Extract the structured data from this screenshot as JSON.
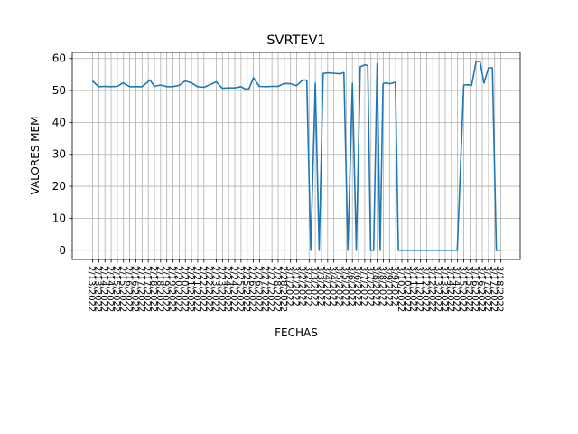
{
  "chart_data": {
    "type": "line",
    "title": "SVRTEV1",
    "xlabel": "FECHAS",
    "ylabel": "VALORES MEM",
    "ylim": [
      -2.9,
      61.9
    ],
    "yticks": [
      0,
      10,
      20,
      30,
      40,
      50,
      60
    ],
    "grid": true,
    "legend": "none",
    "line_color": "#1f77b4",
    "xticks": [
      "2/13/2022",
      "2/14/2022",
      "2/15/2022",
      "2/16/2022",
      "2/17/2022",
      "2/18/2022",
      "2/19/2022",
      "2/20/2022",
      "2/21/2022",
      "2/22/2022",
      "2/23/2022",
      "2/24/2022",
      "2/25/2022",
      "2/26/2022",
      "2/27/2022",
      "2/28/2022",
      "3/1/2022",
      "3/2/2022",
      "3/3/2022",
      "3/4/2022",
      "3/5/2022",
      "3/6/2022",
      "3/7/2022",
      "3/8/2022",
      "3/9/2022",
      "3/10/2022",
      "3/11/2022",
      "3/12/2022",
      "3/13/2022",
      "3/14/2022",
      "3/15/2022",
      "3/16/2022",
      "3/17/2022",
      "3/18/2022"
    ],
    "series": [
      {
        "name": "",
        "points": [
          [
            "2/13/2022",
            53.0
          ],
          [
            "2/13/2022",
            51.2
          ],
          [
            "2/14/2022",
            51.3
          ],
          [
            "2/14/2022",
            51.2
          ],
          [
            "2/15/2022",
            51.3
          ],
          [
            "2/15/2022",
            52.4
          ],
          [
            "2/16/2022",
            51.2
          ],
          [
            "2/16/2022",
            51.2
          ],
          [
            "2/17/2022",
            51.2
          ],
          [
            "2/17/2022",
            52.2
          ],
          [
            "2/17/2022",
            53.3
          ],
          [
            "2/18/2022",
            51.3
          ],
          [
            "2/18/2022",
            51.7
          ],
          [
            "2/19/2022",
            51.2
          ],
          [
            "2/19/2022",
            51.2
          ],
          [
            "2/20/2022",
            51.6
          ],
          [
            "2/20/2022",
            53.0
          ],
          [
            "2/21/2022",
            52.4
          ],
          [
            "2/21/2022",
            51.2
          ],
          [
            "2/22/2022",
            51.0
          ],
          [
            "2/22/2022",
            51.8
          ],
          [
            "2/23/2022",
            52.7
          ],
          [
            "2/23/2022",
            50.7
          ],
          [
            "2/24/2022",
            50.8
          ],
          [
            "2/24/2022",
            50.8
          ],
          [
            "2/25/2022",
            51.2
          ],
          [
            "2/25/2022",
            50.5
          ],
          [
            "2/25/2022",
            50.5
          ],
          [
            "2/26/2022",
            54.0
          ],
          [
            "2/26/2022",
            51.3
          ],
          [
            "2/27/2022",
            51.2
          ],
          [
            "2/27/2022",
            51.3
          ],
          [
            "2/28/2022",
            51.3
          ],
          [
            "2/28/2022",
            52.2
          ],
          [
            "3/1/2022",
            52.1
          ],
          [
            "3/1/2022",
            51.5
          ],
          [
            "3/2/2022",
            53.3
          ],
          [
            "3/2/2022",
            53.2
          ],
          [
            "3/2/2022",
            0
          ],
          [
            "3/3/2022",
            52.3
          ],
          [
            "3/3/2022",
            0
          ],
          [
            "3/3/2022",
            55.3
          ],
          [
            "3/4/2022",
            55.5
          ],
          [
            "3/4/2022",
            55.4
          ],
          [
            "3/5/2022",
            55.2
          ],
          [
            "3/5/2022",
            55.6
          ],
          [
            "3/5/2022",
            0
          ],
          [
            "3/6/2022",
            52.2
          ],
          [
            "3/6/2022",
            0
          ],
          [
            "3/6/2022",
            57.4
          ],
          [
            "3/7/2022",
            58.0
          ],
          [
            "3/7/2022",
            57.8
          ],
          [
            "3/7/2022",
            0
          ],
          [
            "3/7/2022",
            0
          ],
          [
            "3/8/2022",
            58.4
          ],
          [
            "3/8/2022",
            0
          ],
          [
            "3/8/2022",
            52.1
          ],
          [
            "3/8/2022",
            52.4
          ],
          [
            "3/9/2022",
            52.1
          ],
          [
            "3/9/2022",
            52.3
          ],
          [
            "3/9/2022",
            52.6
          ],
          [
            "3/9/2022",
            0
          ],
          [
            "3/10/2022",
            0
          ],
          [
            "3/11/2022",
            0
          ],
          [
            "3/12/2022",
            0
          ],
          [
            "3/13/2022",
            0
          ],
          [
            "3/14/2022",
            0
          ],
          [
            "3/14/2022",
            0
          ],
          [
            "3/15/2022",
            51.7
          ],
          [
            "3/15/2022",
            51.8
          ],
          [
            "3/15/2022",
            51.6
          ],
          [
            "3/16/2022",
            59.1
          ],
          [
            "3/16/2022",
            59.1
          ],
          [
            "3/16/2022",
            52.3
          ],
          [
            "3/17/2022",
            57.1
          ],
          [
            "3/17/2022",
            57.1
          ],
          [
            "3/17/2022",
            0
          ],
          [
            "3/18/2022",
            0
          ]
        ]
      }
    ]
  }
}
